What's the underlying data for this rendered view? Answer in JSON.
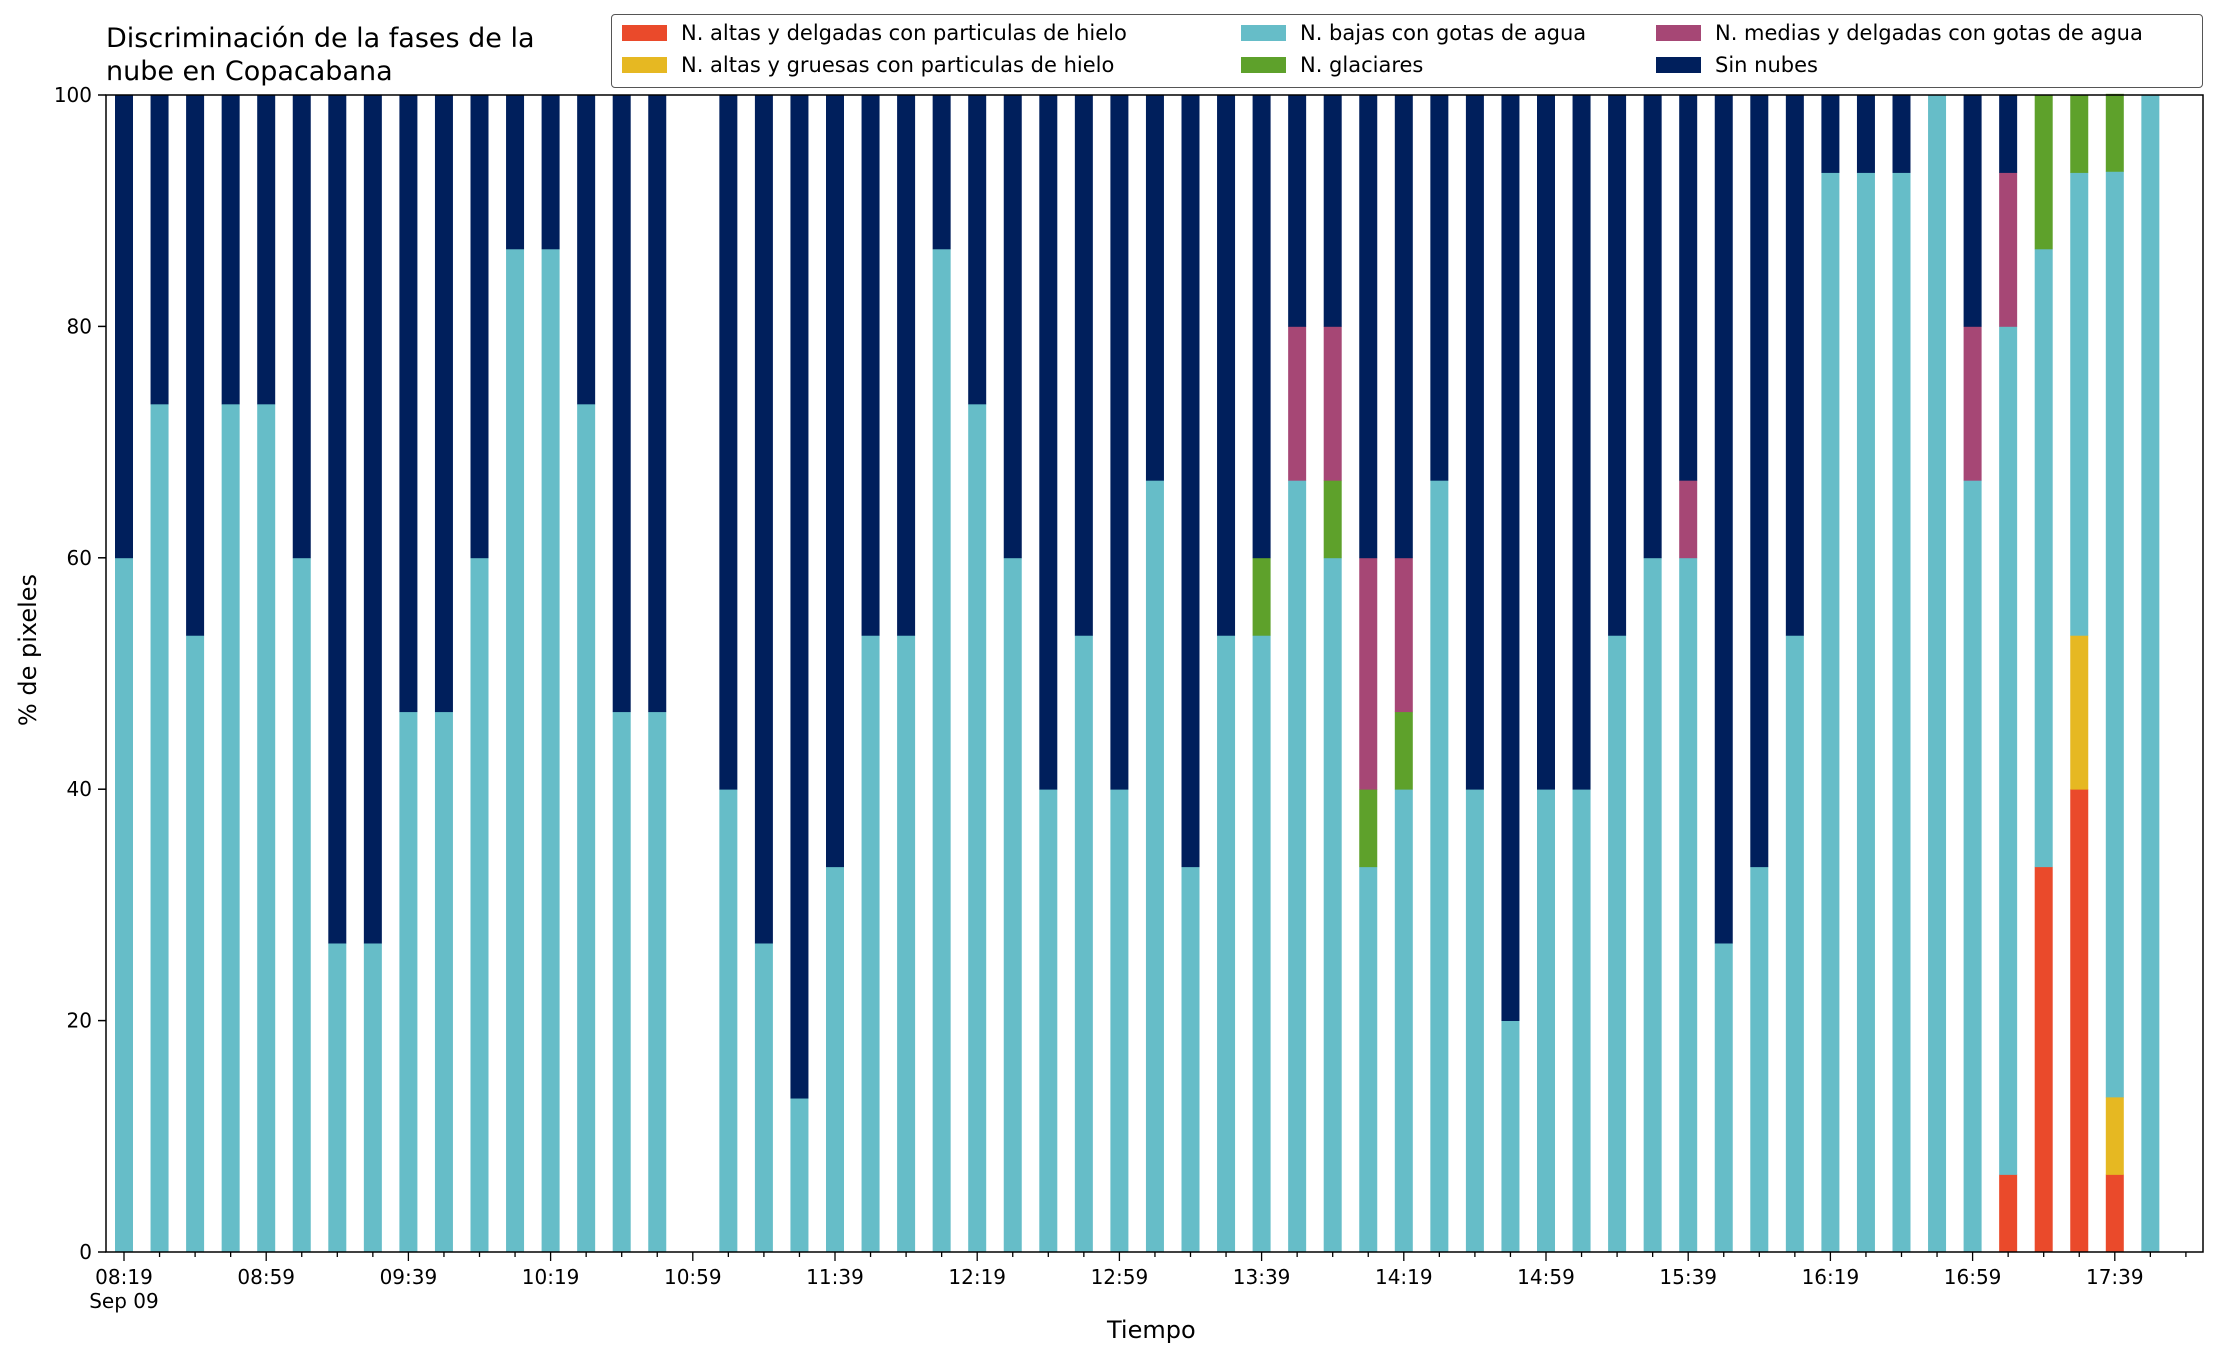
{
  "chart_data": {
    "type": "bar",
    "stacked": true,
    "title_lines": [
      "Discriminación de la fases de la",
      "nube en Copacabana"
    ],
    "xlabel": "Tiempo",
    "ylabel": "% de pixeles",
    "ylim": [
      0,
      100
    ],
    "yticks": [
      "0",
      "20",
      "40",
      "60",
      "80",
      "100"
    ],
    "xtick_labels": [
      "08:19",
      "08:59",
      "09:39",
      "10:19",
      "10:59",
      "11:39",
      "12:19",
      "12:59",
      "13:39",
      "14:19",
      "14:59",
      "15:39",
      "16:19",
      "16:59",
      "17:39"
    ],
    "xtick_sublabel": "Sep 09",
    "legend_position": "top-right",
    "categories": [
      "08:19",
      "08:29",
      "08:39",
      "08:49",
      "08:59",
      "09:09",
      "09:19",
      "09:29",
      "09:39",
      "09:49",
      "09:59",
      "10:09",
      "10:19",
      "10:29",
      "10:39",
      "10:49",
      "10:59",
      "11:09",
      "11:19",
      "11:29",
      "11:39",
      "11:49",
      "11:59",
      "12:09",
      "12:19",
      "12:29",
      "12:39",
      "12:49",
      "12:59",
      "13:09",
      "13:19",
      "13:29",
      "13:39",
      "13:49",
      "13:59",
      "14:09",
      "14:19",
      "14:29",
      "14:39",
      "14:49",
      "14:59",
      "15:09",
      "15:19",
      "15:29",
      "15:39",
      "15:49",
      "15:59",
      "16:09",
      "16:19",
      "16:29",
      "16:39",
      "16:49",
      "16:59",
      "17:09",
      "17:19",
      "17:29",
      "17:39",
      "17:49"
    ],
    "series": [
      {
        "name": "N. altas y delgadas con particulas de hielo",
        "color": "#ea4a2b",
        "values": [
          0,
          0,
          0,
          0,
          0,
          0,
          0,
          0,
          0,
          0,
          0,
          0,
          0,
          0,
          0,
          0,
          0,
          0,
          0,
          0,
          0,
          0,
          0,
          0,
          0,
          0,
          0,
          0,
          0,
          0,
          0,
          0,
          0,
          0,
          0,
          0,
          0,
          0,
          0,
          0,
          0,
          0,
          0,
          0,
          0,
          0,
          0,
          0,
          0,
          0,
          0,
          0,
          0,
          6.7,
          33.3,
          40,
          6.7,
          0
        ]
      },
      {
        "name": "N. altas y gruesas con particulas de hielo",
        "color": "#e6b822",
        "values": [
          0,
          0,
          0,
          0,
          0,
          0,
          0,
          0,
          0,
          0,
          0,
          0,
          0,
          0,
          0,
          0,
          0,
          0,
          0,
          0,
          0,
          0,
          0,
          0,
          0,
          0,
          0,
          0,
          0,
          0,
          0,
          0,
          0,
          0,
          0,
          0,
          0,
          0,
          0,
          0,
          0,
          0,
          0,
          0,
          0,
          0,
          0,
          0,
          0,
          0,
          0,
          0,
          0,
          0,
          0,
          13.3,
          6.7,
          0
        ]
      },
      {
        "name": "N. bajas con gotas de agua",
        "color": "#66bdc8",
        "values": [
          60,
          73.3,
          53.3,
          73.3,
          73.3,
          60,
          26.7,
          26.7,
          46.7,
          46.7,
          60,
          86.7,
          86.7,
          73.3,
          46.7,
          46.7,
          0,
          40,
          26.7,
          13.3,
          33.3,
          53.3,
          53.3,
          86.7,
          73.3,
          60,
          40,
          53.3,
          40,
          66.7,
          33.3,
          53.3,
          53.3,
          66.7,
          60,
          33.3,
          40,
          66.7,
          40,
          20,
          40,
          40,
          53.3,
          60,
          60,
          26.7,
          33.3,
          53.3,
          93.3,
          93.3,
          93.3,
          100,
          66.7,
          73.3,
          53.4,
          40,
          80,
          100
        ]
      },
      {
        "name": "N. glaciares",
        "color": "#5ea12b",
        "values": [
          0,
          0,
          0,
          0,
          0,
          0,
          0,
          0,
          0,
          0,
          0,
          0,
          0,
          0,
          0,
          0,
          0,
          0,
          0,
          0,
          0,
          0,
          0,
          0,
          0,
          0,
          0,
          0,
          0,
          0,
          0,
          0,
          6.7,
          0,
          6.7,
          6.7,
          6.7,
          0,
          0,
          0,
          0,
          0,
          0,
          0,
          0,
          0,
          0,
          0,
          0,
          0,
          0,
          0,
          0,
          0,
          13.3,
          6.7,
          6.7,
          0
        ]
      },
      {
        "name": "N. medias y delgadas con gotas de agua",
        "color": "#a64775",
        "values": [
          0,
          0,
          0,
          0,
          0,
          0,
          0,
          0,
          0,
          0,
          0,
          0,
          0,
          0,
          0,
          0,
          0,
          0,
          0,
          0,
          0,
          0,
          0,
          0,
          0,
          0,
          0,
          0,
          0,
          0,
          0,
          0,
          0,
          13.3,
          13.3,
          20,
          13.3,
          0,
          0,
          0,
          0,
          0,
          0,
          0,
          6.7,
          0,
          0,
          0,
          0,
          0,
          0,
          0,
          13.3,
          13.3,
          0,
          0,
          0,
          0
        ]
      },
      {
        "name": "Sin nubes",
        "color": "#001f5c",
        "values": [
          40,
          26.7,
          46.7,
          26.7,
          26.7,
          40,
          73.3,
          73.3,
          53.3,
          53.3,
          40,
          13.3,
          13.3,
          26.7,
          53.3,
          53.3,
          0,
          60,
          73.3,
          86.7,
          66.7,
          46.7,
          46.7,
          13.3,
          26.7,
          40,
          60,
          46.7,
          60,
          33.3,
          66.7,
          46.7,
          40,
          20,
          20,
          40,
          40,
          33.3,
          60,
          80,
          60,
          60,
          46.7,
          40,
          33.3,
          73.3,
          66.7,
          46.7,
          6.7,
          6.7,
          6.7,
          0,
          20,
          6.7,
          0,
          0,
          0,
          0
        ]
      }
    ]
  }
}
